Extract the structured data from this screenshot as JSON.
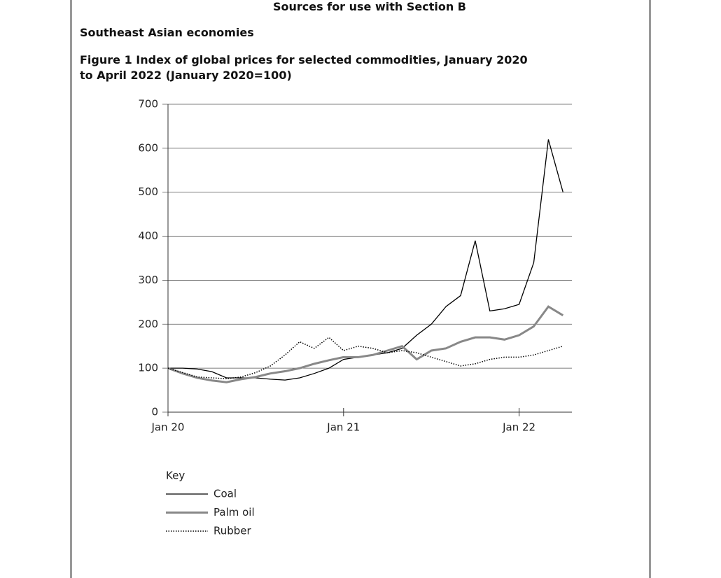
{
  "page": {
    "heading": "Sources for use with Section B",
    "subheading": "Southeast Asian economies"
  },
  "chart_data": {
    "type": "line",
    "title": "Figure 1 Index of global prices for selected commodities, January 2020 to April 2022 (January 2020=100)",
    "categories": [
      "Jan 20",
      null,
      null,
      null,
      null,
      null,
      null,
      null,
      null,
      null,
      null,
      null,
      "Jan 21",
      null,
      null,
      null,
      null,
      null,
      null,
      null,
      null,
      null,
      null,
      null,
      "Jan 22",
      null,
      null,
      null
    ],
    "series": [
      {
        "name": "Coal",
        "color": "#000000",
        "line_style": "solid",
        "values": [
          100,
          100,
          98,
          92,
          78,
          78,
          78,
          75,
          73,
          78,
          88,
          100,
          120,
          125,
          130,
          135,
          145,
          175,
          200,
          240,
          265,
          390,
          230,
          235,
          245,
          340,
          620,
          500
        ]
      },
      {
        "name": "Palm oil",
        "color": "#888888",
        "line_style": "thick",
        "values": [
          100,
          88,
          78,
          72,
          68,
          75,
          80,
          88,
          93,
          100,
          110,
          118,
          125,
          125,
          130,
          140,
          150,
          120,
          140,
          145,
          160,
          170,
          170,
          165,
          175,
          195,
          240,
          220
        ]
      },
      {
        "name": "Rubber",
        "color": "#000000",
        "line_style": "dotted",
        "values": [
          100,
          90,
          80,
          78,
          76,
          80,
          90,
          105,
          130,
          160,
          145,
          170,
          140,
          150,
          145,
          135,
          140,
          135,
          125,
          115,
          105,
          110,
          120,
          125,
          125,
          130,
          140,
          150
        ]
      }
    ],
    "ylim": [
      0,
      700
    ],
    "yticks": [
      0,
      100,
      200,
      300,
      400,
      500,
      600,
      700
    ],
    "grid": true,
    "legend_title": "Key"
  }
}
